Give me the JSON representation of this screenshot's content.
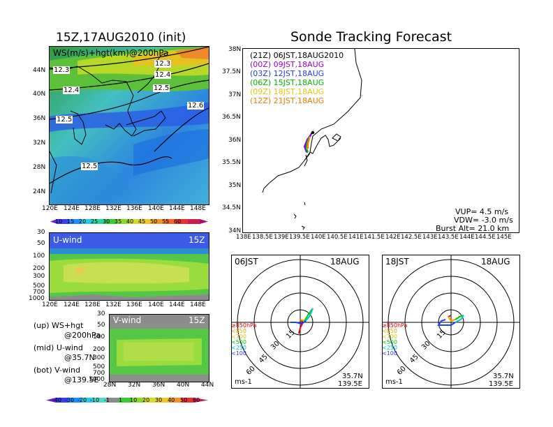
{
  "titles": {
    "left": "15Z,17AUG2010 (init)",
    "right": "Sonde Tracking Forecast"
  },
  "map_panel": {
    "label": "WS(m/s)+hgt(km)@200hPa",
    "lat_ticks": [
      "44N",
      "40N",
      "36N",
      "32N",
      "28N",
      "24N"
    ],
    "lon_ticks": [
      "120E",
      "124E",
      "128E",
      "132E",
      "136E",
      "140E",
      "144E",
      "148E"
    ],
    "contour_labels": [
      "12.3",
      "12.3",
      "12.4",
      "12.4",
      "12.5",
      "12.5",
      "12.6",
      "12.5"
    ],
    "colorbar_ticks": [
      "10",
      "15",
      "20",
      "25",
      "30",
      "35",
      "40",
      "45",
      "50",
      "55",
      "60"
    ]
  },
  "u_panel": {
    "label": "U-wind",
    "time": "15Z",
    "p_ticks": [
      "30",
      "50",
      "100",
      "200",
      "300",
      "500",
      "700",
      "1000"
    ],
    "lon_ticks": [
      "120E",
      "124E",
      "128E",
      "132E",
      "136E",
      "140E",
      "144E",
      "148E"
    ]
  },
  "v_panel": {
    "label": "V-wind",
    "time": "15Z",
    "p_ticks": [
      "30",
      "50",
      "100",
      "200",
      "300",
      "500",
      "700",
      "1000"
    ],
    "lat_ticks": [
      "28N",
      "32N",
      "36N",
      "40N",
      "44N"
    ]
  },
  "notes": [
    {
      "line1": "(up) WS+hgt",
      "line2": "@200hPa"
    },
    {
      "line1": "(mid) U-wind",
      "line2": "@35.7N"
    },
    {
      "line1": "(bot) V-wind",
      "line2": "@139.5E"
    }
  ],
  "bottom_colorbar_ticks": [
    "-40",
    "-30",
    "-20",
    "-10",
    "-1",
    "1",
    "10",
    "20",
    "30",
    "40",
    "50",
    "60"
  ],
  "track_panel": {
    "lat_ticks": [
      "38N",
      "37.5N",
      "37N",
      "36.5N",
      "36N",
      "35.5N",
      "35N",
      "34.5N",
      "34N"
    ],
    "lon_ticks": [
      "138E",
      "138.5E",
      "139E",
      "139.5E",
      "140E",
      "140.5E",
      "141E",
      "141.5E",
      "142E",
      "142.5E",
      "143E",
      "143.5E",
      "144E",
      "144.5E",
      "145E"
    ],
    "legend": [
      {
        "text": "(21Z) 06JST,18AUG2010",
        "color": "#000000"
      },
      {
        "text": "(00Z) 09JST,18AUG",
        "color": "#a000c8"
      },
      {
        "text": "(03Z) 12JST,18AUG",
        "color": "#1e3cff"
      },
      {
        "text": "(06Z) 15JST,18AUG",
        "color": "#00b400"
      },
      {
        "text": "(09Z) 18JST,18AUG",
        "color": "#e6c800"
      },
      {
        "text": "(12Z) 21JST,18AUG",
        "color": "#f07800"
      }
    ],
    "info": {
      "vup": "VUP= 4.5 m/s",
      "vdw": "VDW= -3.0 m/s",
      "alt": "Burst Alt= 21.0 km"
    }
  },
  "hodographs": [
    {
      "time": "06JST",
      "date": "18AUG",
      "lat": "35.7N",
      "lon": "139.5E",
      "unit": "ms-1"
    },
    {
      "time": "18JST",
      "date": "18AUG",
      "lat": "35.7N",
      "lon": "139.5E",
      "unit": "ms-1"
    }
  ],
  "ring_labels": [
    "15",
    "30",
    "45",
    "60"
  ],
  "level_legend": [
    {
      "text": "≥850hPa",
      "color": "#e60000"
    },
    {
      "text": "<850",
      "color": "#f5a000"
    },
    {
      "text": "<700",
      "color": "#d2c800"
    },
    {
      "text": "<500",
      "color": "#00c800"
    },
    {
      "text": "<250",
      "color": "#00c8d2"
    },
    {
      "text": "<100",
      "color": "#1e3cff"
    }
  ]
}
